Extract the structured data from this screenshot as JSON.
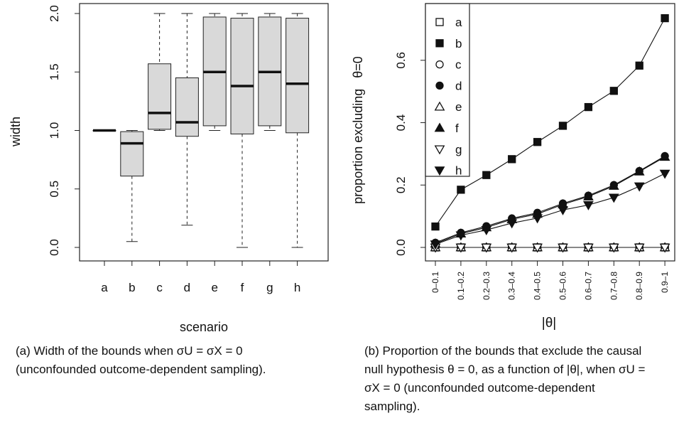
{
  "captions": {
    "a": "(a) Width of the bounds when σU = σX = 0 (unconfounded outcome-dependent sampling).",
    "b": "(b) Proportion of the bounds that exclude the causal null hypothesis θ = 0, as a function of |θ|, when σU = σX = 0 (unconfounded outcome-dependent sampling)."
  },
  "chart_data": [
    {
      "type": "boxplot",
      "xlabel": "scenario",
      "ylabel": "width",
      "ylim": [
        0,
        2
      ],
      "yticks": [
        "0.0",
        "0.5",
        "1.0",
        "1.5",
        "2.0"
      ],
      "categories": [
        "a",
        "b",
        "c",
        "d",
        "e",
        "f",
        "g",
        "h"
      ],
      "boxes": [
        {
          "min": 1.0,
          "q1": 1.0,
          "median": 1.0,
          "q3": 1.0,
          "max": 1.0
        },
        {
          "min": 0.05,
          "q1": 0.61,
          "median": 0.89,
          "q3": 0.99,
          "max": 1.0
        },
        {
          "min": 1.0,
          "q1": 1.01,
          "median": 1.15,
          "q3": 1.57,
          "max": 2.0
        },
        {
          "min": 0.19,
          "q1": 0.95,
          "median": 1.07,
          "q3": 1.45,
          "max": 2.0
        },
        {
          "min": 1.0,
          "q1": 1.04,
          "median": 1.5,
          "q3": 1.97,
          "max": 2.0
        },
        {
          "min": 0.0,
          "q1": 0.97,
          "median": 1.38,
          "q3": 1.96,
          "max": 2.0
        },
        {
          "min": 1.0,
          "q1": 1.04,
          "median": 1.5,
          "q3": 1.97,
          "max": 2.0
        },
        {
          "min": 0.0,
          "q1": 0.98,
          "median": 1.4,
          "q3": 1.96,
          "max": 2.0
        }
      ],
      "box_color": "#d9d9d9"
    },
    {
      "type": "line",
      "xlabel": "|θ|",
      "ylabel": "proportion excluding   θ=0",
      "ylim": [
        0,
        0.75
      ],
      "yticks": [
        "0.0",
        "0.2",
        "0.4",
        "0.6"
      ],
      "categories": [
        "0–0.1",
        "0.1–0.2",
        "0.2–0.3",
        "0.3–0.4",
        "0.4–0.5",
        "0.5–0.6",
        "0.6–0.7",
        "0.7–0.8",
        "0.8–0.9",
        "0.9–1"
      ],
      "legend_position": "top-left",
      "series": [
        {
          "name": "a",
          "marker": "square-open",
          "values": [
            0,
            0,
            0,
            0,
            0,
            0,
            0,
            0,
            0,
            0
          ]
        },
        {
          "name": "b",
          "marker": "square-filled",
          "values": [
            0.067,
            0.185,
            0.232,
            0.283,
            0.338,
            0.39,
            0.45,
            0.502,
            0.583,
            0.735
          ]
        },
        {
          "name": "c",
          "marker": "circle-open",
          "values": [
            0,
            0,
            0,
            0,
            0,
            0,
            0,
            0,
            0,
            0
          ]
        },
        {
          "name": "d",
          "marker": "circle-filled",
          "values": [
            0.015,
            0.047,
            0.068,
            0.093,
            0.111,
            0.141,
            0.166,
            0.2,
            0.245,
            0.293
          ]
        },
        {
          "name": "e",
          "marker": "triangle-up-open",
          "values": [
            0,
            0,
            0,
            0,
            0,
            0,
            0,
            0,
            0,
            0
          ]
        },
        {
          "name": "f",
          "marker": "triangle-up-filled",
          "values": [
            0.012,
            0.044,
            0.064,
            0.09,
            0.107,
            0.138,
            0.163,
            0.197,
            0.243,
            0.29
          ]
        },
        {
          "name": "g",
          "marker": "triangle-down-open",
          "values": [
            0,
            0,
            0,
            0,
            0,
            0,
            0,
            0,
            0,
            0
          ]
        },
        {
          "name": "h",
          "marker": "triangle-down-filled",
          "values": [
            0.01,
            0.039,
            0.056,
            0.078,
            0.094,
            0.12,
            0.136,
            0.16,
            0.196,
            0.237
          ]
        }
      ]
    }
  ]
}
